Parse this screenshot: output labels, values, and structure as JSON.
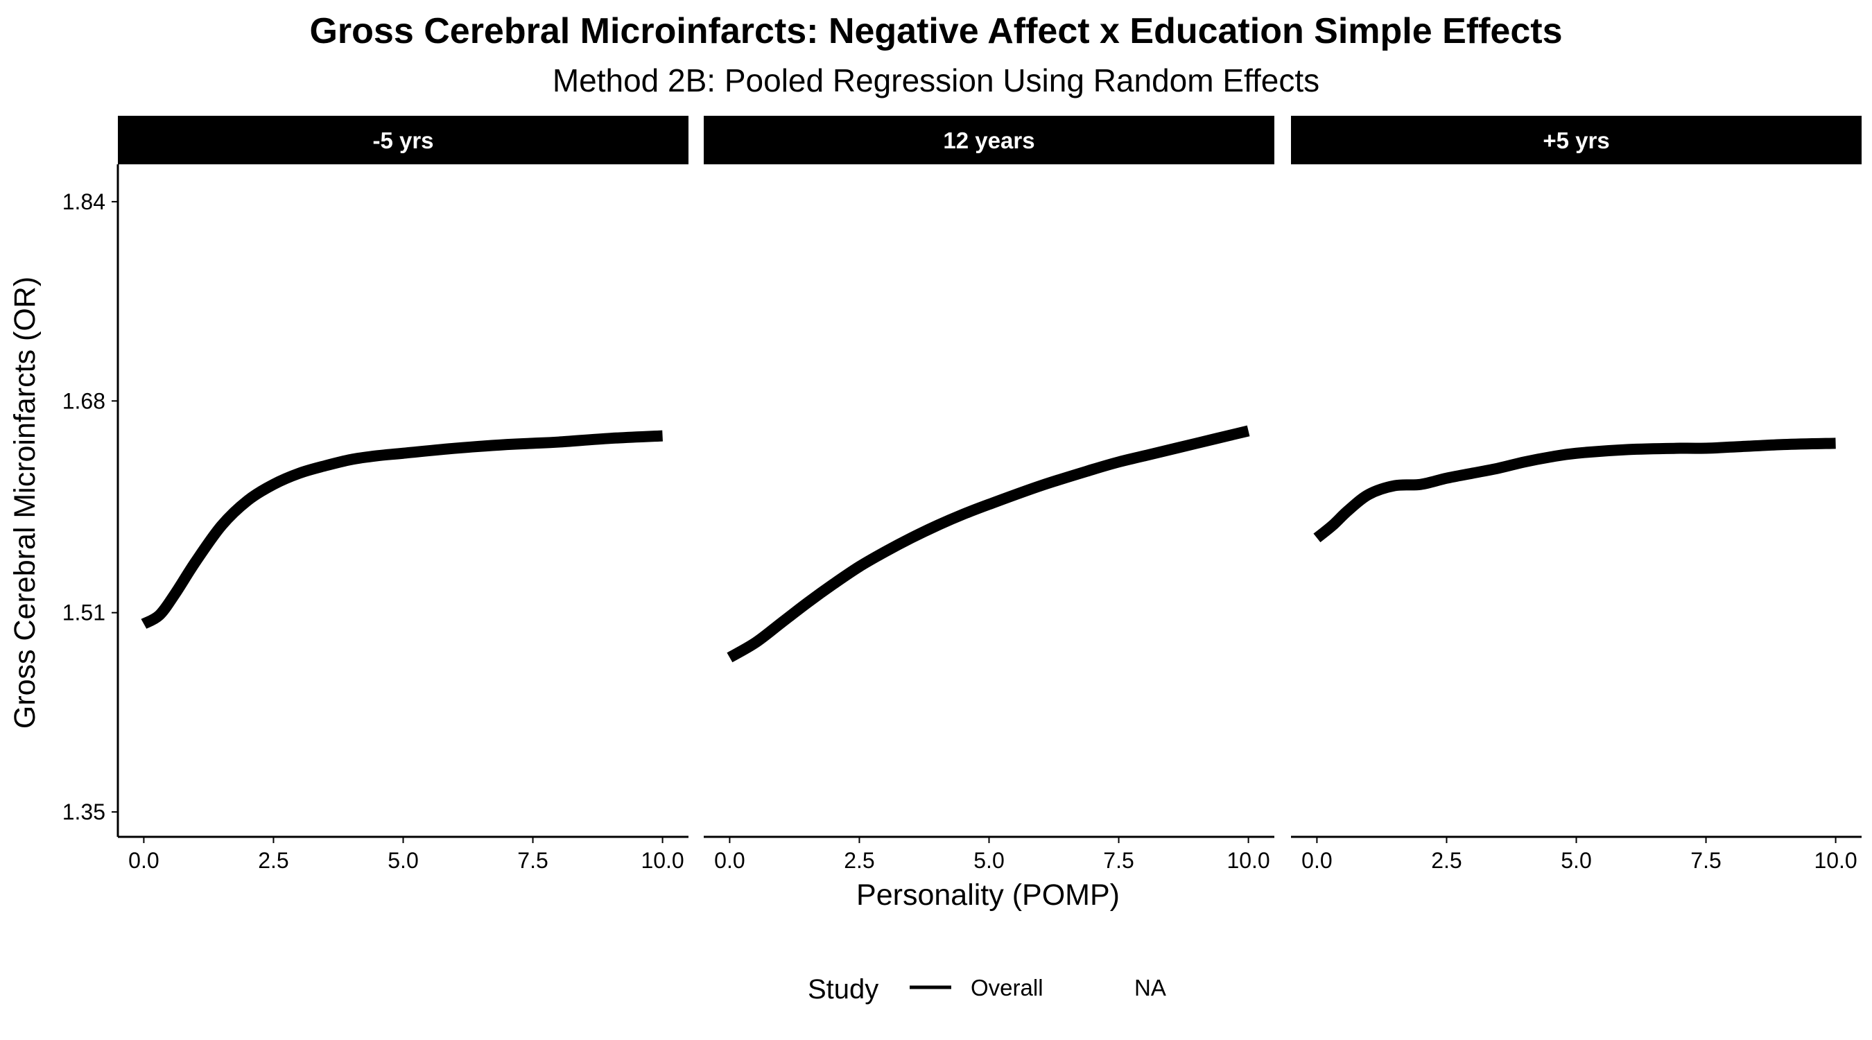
{
  "chart_data": {
    "type": "line",
    "title": "Gross Cerebral Microinfarcts: Negative Affect x Education Simple Effects",
    "subtitle": "Method 2B: Pooled Regression Using Random Effects",
    "xlabel": "Personality (POMP)",
    "ylabel": "Gross Cerebral Microinfarcts (OR)",
    "xlim": [
      -0.5,
      10.5
    ],
    "ylim": [
      1.33,
      1.87
    ],
    "x_ticks": [
      0,
      2.5,
      5,
      7.5,
      10
    ],
    "x_tick_labels": [
      "0.0",
      "2.5",
      "5.0",
      "7.5",
      "10.0"
    ],
    "y_ticks": [
      1.35,
      1.51,
      1.68,
      1.84
    ],
    "y_tick_labels": [
      "1.35",
      "1.51",
      "1.68",
      "1.84"
    ],
    "grid": false,
    "line_color": "#000000",
    "strip_color": "#000000",
    "legend": {
      "title": "Study",
      "position": "bottom",
      "entries": [
        {
          "label": "Overall",
          "symbol": "line"
        },
        {
          "label": "NA",
          "symbol": "none"
        }
      ]
    },
    "panels": [
      {
        "strip_label": "-5 yrs",
        "series": [
          {
            "legend_entry": "Overall",
            "x": [
              0,
              0.3,
              0.6,
              1,
              1.5,
              2,
              2.5,
              3,
              3.5,
              4,
              4.5,
              5,
              6,
              7,
              7.5,
              8,
              9,
              10
            ],
            "y": [
              1.501,
              1.508,
              1.525,
              1.551,
              1.58,
              1.6,
              1.613,
              1.622,
              1.628,
              1.633,
              1.636,
              1.638,
              1.642,
              1.645,
              1.646,
              1.647,
              1.65,
              1.652
            ]
          }
        ]
      },
      {
        "strip_label": "12 years",
        "series": [
          {
            "legend_entry": "Overall",
            "x": [
              0,
              0.5,
              1,
              1.5,
              2,
              2.5,
              3,
              3.5,
              4,
              4.5,
              5,
              6,
              7,
              7.5,
              8,
              9,
              10
            ],
            "y": [
              1.474,
              1.486,
              1.502,
              1.518,
              1.533,
              1.547,
              1.559,
              1.57,
              1.58,
              1.589,
              1.597,
              1.612,
              1.625,
              1.631,
              1.636,
              1.646,
              1.656
            ]
          }
        ]
      },
      {
        "strip_label": "+5 yrs",
        "series": [
          {
            "legend_entry": "Overall",
            "x": [
              0,
              0.3,
              0.6,
              1,
              1.5,
              2,
              2.5,
              3,
              3.5,
              4,
              4.5,
              5,
              6,
              7,
              7.5,
              8,
              9,
              10
            ],
            "y": [
              1.57,
              1.58,
              1.592,
              1.605,
              1.612,
              1.613,
              1.618,
              1.622,
              1.626,
              1.631,
              1.635,
              1.638,
              1.641,
              1.642,
              1.642,
              1.643,
              1.645,
              1.646
            ]
          }
        ]
      }
    ]
  }
}
